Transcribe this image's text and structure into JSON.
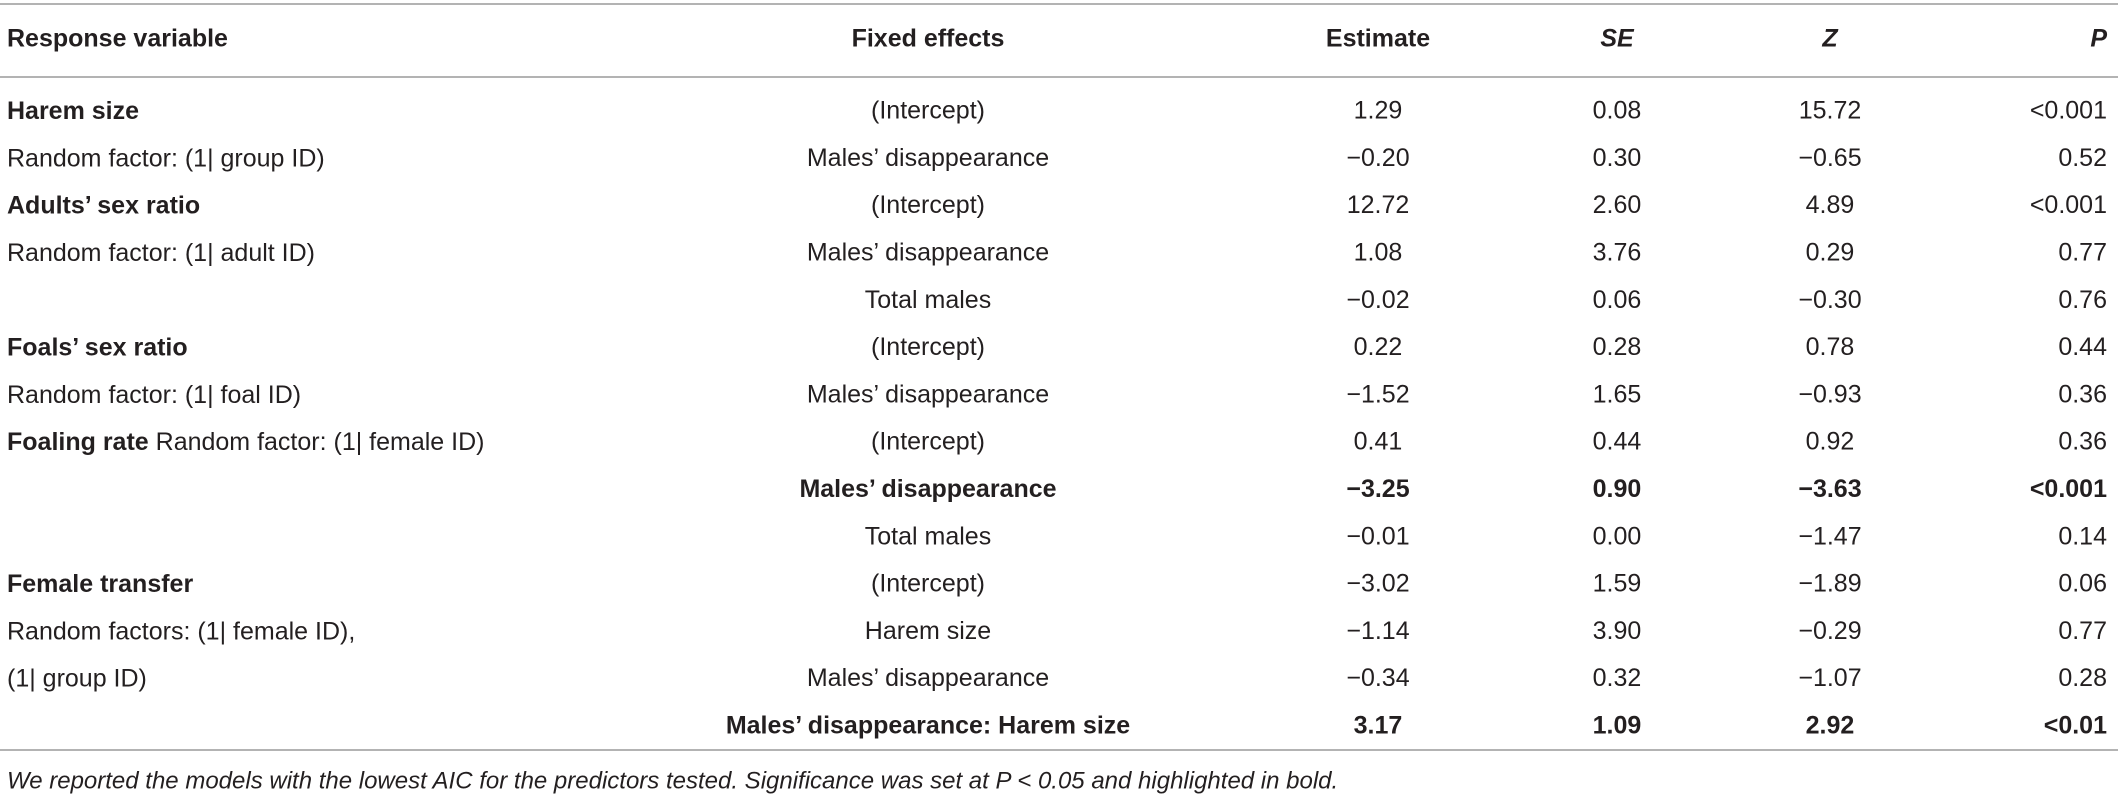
{
  "table": {
    "header": [
      "Response variable",
      "Fixed effects",
      "Estimate",
      "SE",
      "Z",
      "P"
    ],
    "rows": [
      {
        "response": "Harem size",
        "response_bold": true,
        "fixed_effect": "(Intercept)",
        "estimate": "1.29",
        "se": "0.08",
        "z": "15.72",
        "p": "<0.001",
        "significant": false
      },
      {
        "response": "Random factor: (1| group ID)",
        "response_bold": false,
        "fixed_effect": "Males’ disappearance",
        "estimate": "−0.20",
        "se": "0.30",
        "z": "−0.65",
        "p": "0.52",
        "significant": false
      },
      {
        "response": "Adults’ sex ratio",
        "response_bold": true,
        "fixed_effect": "(Intercept)",
        "estimate": "12.72",
        "se": "2.60",
        "z": "4.89",
        "p": "<0.001",
        "significant": false
      },
      {
        "response": "Random factor: (1| adult ID)",
        "response_bold": false,
        "fixed_effect": "Males’ disappearance",
        "estimate": "1.08",
        "se": "3.76",
        "z": "0.29",
        "p": "0.77",
        "significant": false
      },
      {
        "fixed_effect": "Total males",
        "estimate": "−0.02",
        "se": "0.06",
        "z": "−0.30",
        "p": "0.76",
        "significant": false
      },
      {
        "response": "Foals’ sex ratio",
        "response_bold": true,
        "fixed_effect": "(Intercept)",
        "estimate": "0.22",
        "se": "0.28",
        "z": "0.78",
        "p": "0.44",
        "significant": false
      },
      {
        "response": "Random factor: (1| foal ID)",
        "response_bold": false,
        "fixed_effect": "Males’ disappearance",
        "estimate": "−1.52",
        "se": "1.65",
        "z": "−0.93",
        "p": "0.36",
        "significant": false
      },
      {
        "response": "Foaling rate",
        "response_bold": true,
        "response_note": "Random factor: (1| female ID)",
        "fixed_effect": "(Intercept)",
        "estimate": "0.41",
        "se": "0.44",
        "z": "0.92",
        "p": "0.36",
        "significant": false
      },
      {
        "fixed_effect": "Males’ disappearance",
        "estimate": "−3.25",
        "se": "0.90",
        "z": "−3.63",
        "p": "<0.001",
        "significant": true
      },
      {
        "fixed_effect": "Total males",
        "estimate": "−0.01",
        "se": "0.00",
        "z": "−1.47",
        "p": "0.14",
        "significant": false
      },
      {
        "response": "Female transfer",
        "response_bold": true,
        "fixed_effect": "(Intercept)",
        "estimate": "−3.02",
        "se": "1.59",
        "z": "−1.89",
        "p": "0.06",
        "significant": false
      },
      {
        "response": "Random factors: (1| female ID),",
        "response_bold": false,
        "fixed_effect": "Harem size",
        "estimate": "−1.14",
        "se": "3.90",
        "z": "−0.29",
        "p": "0.77",
        "significant": false
      },
      {
        "response": "(1| group ID)",
        "response_bold": false,
        "fixed_effect": "Males’ disappearance",
        "estimate": "−0.34",
        "se": "0.32",
        "z": "−1.07",
        "p": "0.28",
        "significant": false
      },
      {
        "fixed_effect": "Males’ disappearance: Harem size",
        "estimate": "3.17",
        "se": "1.09",
        "z": "2.92",
        "p": "<0.01",
        "significant": true
      }
    ],
    "footnote": "We reported the models with the lowest AIC for the predictors tested. Significance was set at P < 0.05 and highlighted in bold."
  }
}
